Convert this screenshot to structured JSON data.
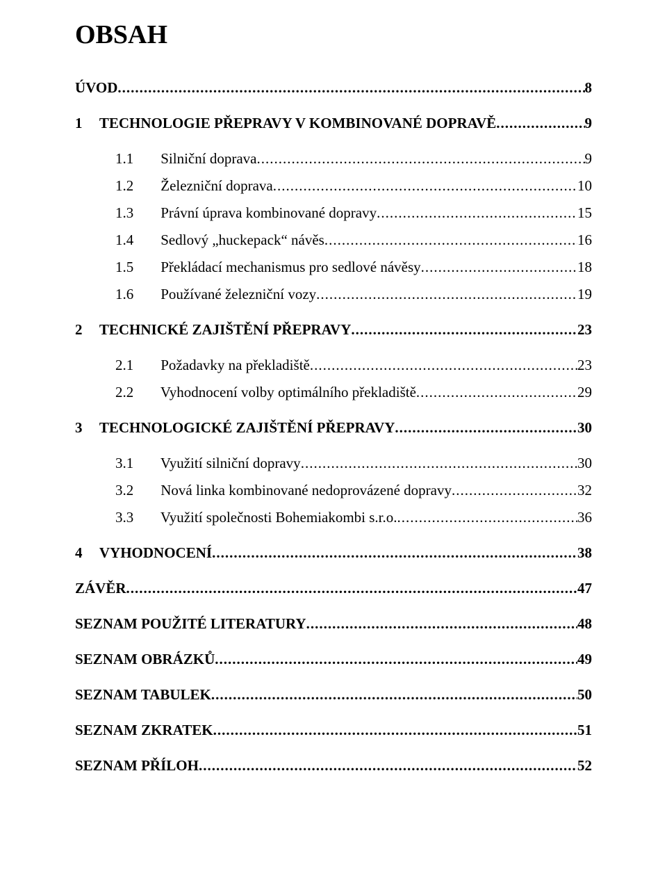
{
  "title": "OBSAH",
  "font_family": "Times New Roman",
  "colors": {
    "text": "#000000",
    "background": "#ffffff"
  },
  "entries": [
    {
      "level": 0,
      "num": "",
      "text": "ÚVOD",
      "page": "8"
    },
    {
      "level": 1,
      "num": "1",
      "text": "TECHNOLOGIE PŘEPRAVY V KOMBINOVANÉ DOPRAVĚ",
      "page": "9"
    },
    {
      "level": 2,
      "num": "1.1",
      "text": "Silniční doprava",
      "page": "9"
    },
    {
      "level": 2,
      "num": "1.2",
      "text": "Železniční doprava",
      "page": "10"
    },
    {
      "level": 2,
      "num": "1.3",
      "text": "Právní úprava kombinované dopravy",
      "page": "15"
    },
    {
      "level": 2,
      "num": "1.4",
      "text": "Sedlový „huckepack“ návěs",
      "page": "16"
    },
    {
      "level": 2,
      "num": "1.5",
      "text": "Překládací mechanismus pro sedlové návěsy",
      "page": "18"
    },
    {
      "level": 2,
      "num": "1.6",
      "text": "Používané železniční vozy",
      "page": "19"
    },
    {
      "level": 1,
      "num": "2",
      "text": "TECHNICKÉ ZAJIŠTĚNÍ PŘEPRAVY",
      "page": "23"
    },
    {
      "level": 2,
      "num": "2.1",
      "text": "Požadavky na překladiště",
      "page": "23"
    },
    {
      "level": 2,
      "num": "2.2",
      "text": "Vyhodnocení volby optimálního překladiště",
      "page": "29"
    },
    {
      "level": 1,
      "num": "3",
      "text": "TECHNOLOGICKÉ ZAJIŠTĚNÍ PŘEPRAVY",
      "page": "30"
    },
    {
      "level": 2,
      "num": "3.1",
      "text": "Využití silniční dopravy",
      "page": "30"
    },
    {
      "level": 2,
      "num": "3.2",
      "text": "Nová linka kombinované nedoprovázené dopravy",
      "page": "32"
    },
    {
      "level": 2,
      "num": "3.3",
      "text": "Využití společnosti Bohemiakombi s.r.o. ",
      "page": "36"
    },
    {
      "level": 1,
      "num": "4",
      "text": "VYHODNOCENÍ",
      "page": "38"
    },
    {
      "level": 0,
      "num": "",
      "text": "ZÁVĚR",
      "page": "47"
    },
    {
      "level": 0,
      "num": "",
      "text": "SEZNAM POUŽITÉ LITERATURY",
      "page": "48"
    },
    {
      "level": 0,
      "num": "",
      "text": "SEZNAM OBRÁZKŮ",
      "page": "49"
    },
    {
      "level": 0,
      "num": "",
      "text": "SEZNAM TABULEK",
      "page": "50"
    },
    {
      "level": 0,
      "num": "",
      "text": "SEZNAM ZKRATEK",
      "page": "51"
    },
    {
      "level": 0,
      "num": "",
      "text": "SEZNAM PŘÍLOH",
      "page": "52"
    }
  ]
}
